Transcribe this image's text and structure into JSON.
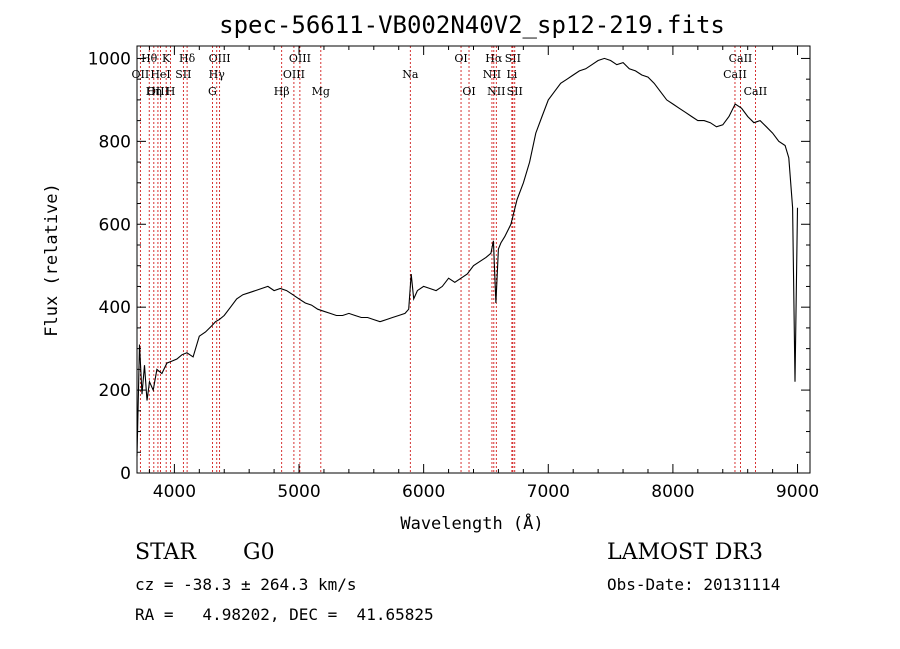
{
  "chart_data": {
    "type": "line",
    "title": "spec-56611-VB002N40V2_sp12-219.fits",
    "xlabel": "Wavelength (Å)",
    "ylabel": "Flux (relative)",
    "xlim": [
      3700,
      9100
    ],
    "ylim": [
      0,
      1030
    ],
    "xticks": [
      4000,
      5000,
      6000,
      7000,
      8000,
      9000
    ],
    "yticks": [
      0,
      200,
      400,
      600,
      800,
      1000
    ],
    "line_color": "#000000",
    "marker_color": "#cc0000",
    "series": [
      {
        "name": "flux",
        "x": [
          3700,
          3720,
          3740,
          3760,
          3780,
          3800,
          3830,
          3860,
          3900,
          3940,
          3980,
          4020,
          4060,
          4100,
          4150,
          4200,
          4250,
          4300,
          4330,
          4360,
          4400,
          4450,
          4500,
          4550,
          4600,
          4650,
          4700,
          4750,
          4800,
          4850,
          4900,
          4950,
          5000,
          5050,
          5100,
          5150,
          5200,
          5250,
          5300,
          5350,
          5400,
          5450,
          5500,
          5550,
          5600,
          5650,
          5700,
          5750,
          5800,
          5850,
          5880,
          5900,
          5920,
          5950,
          6000,
          6050,
          6100,
          6150,
          6200,
          6250,
          6300,
          6350,
          6400,
          6450,
          6500,
          6540,
          6560,
          6580,
          6600,
          6620,
          6650,
          6700,
          6750,
          6800,
          6850,
          6900,
          6950,
          7000,
          7050,
          7100,
          7150,
          7200,
          7250,
          7300,
          7350,
          7400,
          7450,
          7500,
          7550,
          7600,
          7650,
          7700,
          7750,
          7800,
          7850,
          7900,
          7950,
          8000,
          8050,
          8100,
          8150,
          8200,
          8250,
          8300,
          8350,
          8400,
          8450,
          8500,
          8550,
          8600,
          8650,
          8700,
          8750,
          8800,
          8850,
          8900,
          8930,
          8960,
          8980,
          9000
        ],
        "values": [
          40,
          310,
          190,
          260,
          175,
          220,
          200,
          250,
          240,
          265,
          270,
          275,
          285,
          290,
          280,
          330,
          340,
          355,
          365,
          370,
          380,
          400,
          420,
          430,
          435,
          440,
          445,
          450,
          440,
          445,
          440,
          430,
          420,
          410,
          405,
          395,
          390,
          385,
          380,
          380,
          385,
          380,
          375,
          375,
          370,
          365,
          370,
          375,
          380,
          385,
          395,
          480,
          420,
          440,
          450,
          445,
          440,
          450,
          470,
          460,
          470,
          480,
          500,
          510,
          520,
          530,
          560,
          410,
          540,
          555,
          570,
          600,
          660,
          700,
          750,
          820,
          860,
          900,
          920,
          940,
          950,
          960,
          970,
          975,
          985,
          995,
          1000,
          995,
          985,
          990,
          975,
          970,
          960,
          955,
          940,
          920,
          900,
          890,
          880,
          870,
          860,
          850,
          850,
          845,
          835,
          840,
          860,
          890,
          880,
          860,
          845,
          850,
          835,
          820,
          800,
          790,
          760,
          640,
          220,
          640
        ]
      }
    ],
    "line_markers": [
      {
        "name": "Hθ",
        "wavelength": 3798,
        "row": 1
      },
      {
        "name": "OII",
        "wavelength": 3727,
        "row": 2
      },
      {
        "name": "OIII",
        "wavelength": 3868,
        "row": 3
      },
      {
        "name": "K",
        "wavelength": 3934,
        "row": 1
      },
      {
        "name": "HeI",
        "wavelength": 3889,
        "row": 2
      },
      {
        "name": "Hη",
        "wavelength": 3835,
        "row": 3
      },
      {
        "name": "Hδ",
        "wavelength": 4102,
        "row": 1
      },
      {
        "name": "SII",
        "wavelength": 4072,
        "row": 2
      },
      {
        "name": "H",
        "wavelength": 3969,
        "row": 3
      },
      {
        "name": "OIII",
        "wavelength": 4363,
        "row": 1
      },
      {
        "name": "Hγ",
        "wavelength": 4340,
        "row": 2
      },
      {
        "name": "G",
        "wavelength": 4305,
        "row": 3
      },
      {
        "name": "OIII",
        "wavelength": 5007,
        "row": 1
      },
      {
        "name": "OIII",
        "wavelength": 4959,
        "row": 2
      },
      {
        "name": "Hβ",
        "wavelength": 4861,
        "row": 3
      },
      {
        "name": "Mg",
        "wavelength": 5175,
        "row": 3
      },
      {
        "name": "Na",
        "wavelength": 5893,
        "row": 2
      },
      {
        "name": "OI",
        "wavelength": 6300,
        "row": 1
      },
      {
        "name": "OI",
        "wavelength": 6364,
        "row": 3
      },
      {
        "name": "Hα",
        "wavelength": 6563,
        "row": 1
      },
      {
        "name": "NII",
        "wavelength": 6548,
        "row": 2
      },
      {
        "name": "NII",
        "wavelength": 6583,
        "row": 3
      },
      {
        "name": "SII",
        "wavelength": 6716,
        "row": 1
      },
      {
        "name": "Li",
        "wavelength": 6708,
        "row": 2
      },
      {
        "name": "SII",
        "wavelength": 6731,
        "row": 3
      },
      {
        "name": "CaII",
        "wavelength": 8542,
        "row": 1
      },
      {
        "name": "CaII",
        "wavelength": 8498,
        "row": 2
      },
      {
        "name": "CaII",
        "wavelength": 8662,
        "row": 3
      }
    ]
  },
  "info": {
    "class": "STAR",
    "subclass": "G0",
    "survey": "LAMOST DR3",
    "cz": "cz = -38.3 ± 264.3 km/s",
    "obs_date": "Obs-Date: 20131114",
    "radec": "RA =   4.98202, DEC =  41.65825"
  }
}
